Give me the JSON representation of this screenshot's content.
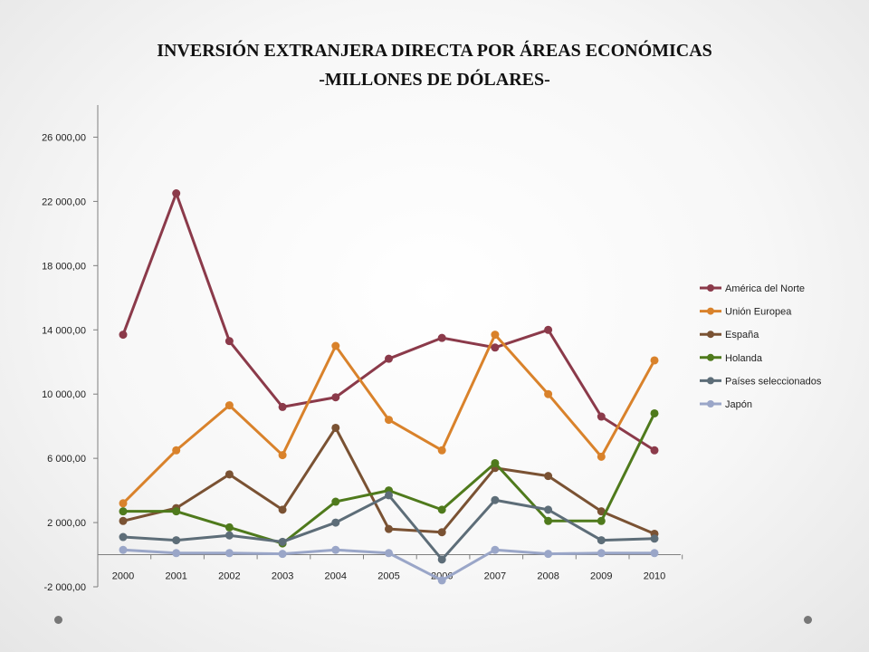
{
  "chart_data": {
    "type": "line",
    "title": "INVERSIÓN EXTRANJERA DIRECTA POR ÁREAS ECONÓMICAS",
    "subtitle": "-MILLONES DE DÓLARES-",
    "xlabel": "",
    "ylabel": "",
    "categories": [
      "2000",
      "2001",
      "2002",
      "2003",
      "2004",
      "2005",
      "2006",
      "2007",
      "2008",
      "2009",
      "2010"
    ],
    "ylim": [
      -2000,
      28000
    ],
    "yticks": [
      -2000,
      2000,
      6000,
      10000,
      14000,
      18000,
      22000,
      26000
    ],
    "ytick_labels": [
      "-2 000,00",
      "2 000,00",
      "6 000,00",
      "10 000,00",
      "14 000,00",
      "18 000,00",
      "22 000,00",
      "26 000,00"
    ],
    "grid": false,
    "legend_position": "right",
    "series": [
      {
        "name": "América del Norte",
        "color": "#8b3a4a",
        "values": [
          13700,
          22500,
          13300,
          9200,
          9800,
          12200,
          13500,
          12900,
          14000,
          8600,
          6500
        ]
      },
      {
        "name": "Unión Europea",
        "color": "#d9822b",
        "values": [
          3200,
          6500,
          9300,
          6200,
          13000,
          8400,
          6500,
          13700,
          10000,
          6100,
          12100
        ]
      },
      {
        "name": "España",
        "color": "#7a5233",
        "values": [
          2100,
          2900,
          5000,
          2800,
          7900,
          1600,
          1400,
          5400,
          4900,
          2700,
          1300
        ]
      },
      {
        "name": "Holanda",
        "color": "#4f7a1c",
        "values": [
          2700,
          2700,
          1700,
          700,
          3300,
          4000,
          2800,
          5700,
          2100,
          2100,
          8800
        ]
      },
      {
        "name": "Países seleccionados",
        "color": "#5d6d78",
        "values": [
          1100,
          900,
          1200,
          800,
          2000,
          3700,
          -300,
          3400,
          2800,
          900,
          1000
        ]
      },
      {
        "name": "Japón",
        "color": "#9aa6c8",
        "values": [
          300,
          100,
          100,
          50,
          300,
          100,
          -1600,
          300,
          50,
          100,
          100
        ]
      }
    ]
  }
}
